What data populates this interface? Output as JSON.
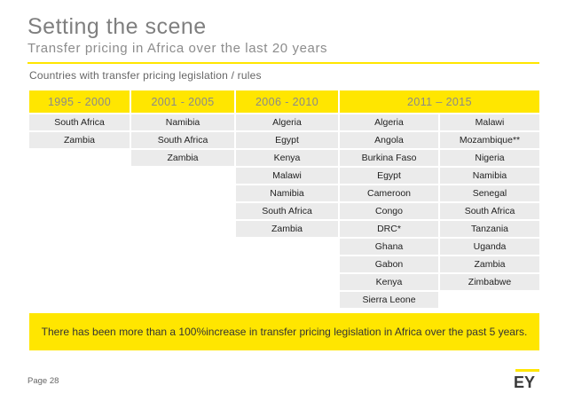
{
  "title": "Setting the scene",
  "subtitle": "Transfer pricing in Africa over the last 20 years",
  "section_label": "Countries with transfer pricing legislation / rules",
  "table": {
    "headers": [
      "1995 - 2000",
      "2001 - 2005",
      "2006 - 2010",
      "2011 – 2015"
    ],
    "col_1995_2000": [
      "South Africa",
      "Zambia"
    ],
    "col_2001_2005": [
      "Namibia",
      "South Africa",
      "Zambia"
    ],
    "col_2006_2010": [
      "Algeria",
      "Egypt",
      "Kenya",
      "Malawi",
      "Namibia",
      "South Africa",
      "Zambia"
    ],
    "col_2011_2015_a": [
      "Algeria",
      "Angola",
      "Burkina Faso",
      "Egypt",
      "Cameroon",
      "Congo",
      "DRC*",
      "Ghana",
      "Gabon",
      "Kenya",
      "Sierra Leone"
    ],
    "col_2011_2015_b": [
      "Malawi",
      "Mozambique**",
      "Nigeria",
      "Namibia",
      "Senegal",
      "South Africa",
      "Tanzania",
      "Uganda",
      "Zambia",
      "Zimbabwe"
    ]
  },
  "callout": "There has been more than a 100%increase in transfer pricing legislation in Africa over the past 5 years.",
  "footer": {
    "page_label": "Page 28"
  },
  "logo_text": "EY",
  "colors": {
    "accent": "#ffe600",
    "cell_bg": "#ebebeb",
    "title": "#7f7f7f"
  }
}
